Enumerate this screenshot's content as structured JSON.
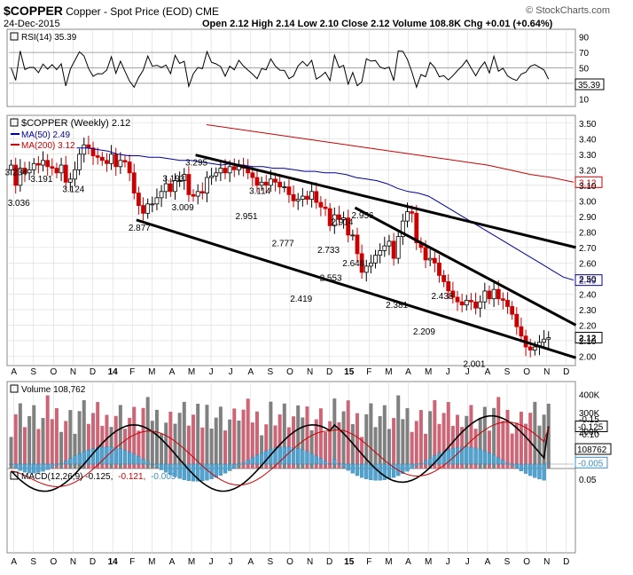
{
  "header": {
    "symbol": "$COPPER",
    "name": "Copper - Spot Price (EOD)",
    "exchange": "CME",
    "date": "24-Dec-2015",
    "ohlc_label": "Open 2.12  High 2.14  Low 2.10  Close 2.12  Volume 108.8K  Chg +0.01 (+0.64%)",
    "source": "© StockCharts.com"
  },
  "rsi": {
    "label": "RSI(14) 35.39",
    "value_box": "35.39",
    "ticks": [
      90,
      70,
      50,
      30,
      10
    ],
    "levels": [
      70,
      50,
      30
    ]
  },
  "price": {
    "label": "$COPPER (Weekly) 2.12",
    "ma50_label": "MA(50) 2.49",
    "ma200_label": "MA(200) 3.12",
    "ticks": [
      "3.50",
      "3.40",
      "3.30",
      "3.20",
      "3.10",
      "3.00",
      "2.90",
      "2.80",
      "2.70",
      "2.60",
      "2.50",
      "2.40",
      "2.30",
      "2.20",
      "2.10",
      "2.00"
    ],
    "tags": [
      "3.12",
      "2.49",
      "2.12"
    ],
    "annotations": [
      {
        "t": "3.234",
        "x": 0.4,
        "y": 3.234
      },
      {
        "t": "3.036",
        "x": 1,
        "y": 3.036
      },
      {
        "t": "3.191",
        "x": 6,
        "y": 3.191
      },
      {
        "t": "3.124",
        "x": 13,
        "y": 3.124
      },
      {
        "t": "2.877",
        "x": 27.5,
        "y": 2.877
      },
      {
        "t": "3.193",
        "x": 35,
        "y": 3.193
      },
      {
        "t": "3.009",
        "x": 37,
        "y": 3.009
      },
      {
        "t": "3.295",
        "x": 40,
        "y": 3.295
      },
      {
        "t": "3.114",
        "x": 54,
        "y": 3.114
      },
      {
        "t": "2.951",
        "x": 51,
        "y": 2.951
      },
      {
        "t": "2.777",
        "x": 59,
        "y": 2.777
      },
      {
        "t": "2.419",
        "x": 63,
        "y": 2.419
      },
      {
        "t": "2.733",
        "x": 69,
        "y": 2.733
      },
      {
        "t": "2.553",
        "x": 69.5,
        "y": 2.553
      },
      {
        "t": "2.914",
        "x": 72,
        "y": 2.914
      },
      {
        "t": "2.648",
        "x": 74.5,
        "y": 2.648
      },
      {
        "t": "2.956",
        "x": 76.5,
        "y": 2.956
      },
      {
        "t": "2.381",
        "x": 84,
        "y": 2.381
      },
      {
        "t": "2.438",
        "x": 94,
        "y": 2.438
      },
      {
        "t": "2.209",
        "x": 90,
        "y": 2.209
      },
      {
        "t": "2.001",
        "x": 101,
        "y": 2.001
      }
    ]
  },
  "volume": {
    "label": "Volume 108,762",
    "value_box": "108762",
    "ticks": [
      "400K",
      "300K",
      "200K",
      "100K"
    ]
  },
  "macd": {
    "label_prefix": "MACD(12,26,9) -0.125,",
    "label_signal": "-0.121,",
    "label_hist": "-0.005",
    "ticks": [
      "0.05",
      "-0.10",
      "-0.15"
    ],
    "tags": [
      "-0.005",
      "-0.125"
    ]
  },
  "x_axis": {
    "labels": [
      {
        "t": "A",
        "i": 0.6
      },
      {
        "t": "S",
        "i": 4.9
      },
      {
        "t": "O",
        "i": 9.3
      },
      {
        "t": "N",
        "i": 13.6
      },
      {
        "t": "D",
        "i": 17.9
      },
      {
        "t": "14",
        "i": 22.3,
        "bold": true
      },
      {
        "t": "F",
        "i": 26.6
      },
      {
        "t": "M",
        "i": 30.9
      },
      {
        "t": "A",
        "i": 35.3
      },
      {
        "t": "M",
        "i": 39.6
      },
      {
        "t": "J",
        "i": 43.9
      },
      {
        "t": "J",
        "i": 48.2
      },
      {
        "t": "A",
        "i": 52.6
      },
      {
        "t": "S",
        "i": 56.9
      },
      {
        "t": "O",
        "i": 61.2
      },
      {
        "t": "N",
        "i": 65.6
      },
      {
        "t": "D",
        "i": 69.9
      },
      {
        "t": "15",
        "i": 74.2,
        "bold": true
      },
      {
        "t": "F",
        "i": 78.6
      },
      {
        "t": "M",
        "i": 82.9
      },
      {
        "t": "A",
        "i": 87.2
      },
      {
        "t": "M",
        "i": 91.6
      },
      {
        "t": "J",
        "i": 95.9
      },
      {
        "t": "J",
        "i": 100.2
      },
      {
        "t": "A",
        "i": 104.6
      },
      {
        "t": "S",
        "i": 108.9
      },
      {
        "t": "O",
        "i": 113.2
      },
      {
        "t": "N",
        "i": 117.6
      },
      {
        "t": "D",
        "i": 121.9
      }
    ]
  },
  "colors": {
    "up": "#000000",
    "down": "#cc0000",
    "ma50": "#000099",
    "ma200": "#cc0000",
    "vol_up": "#808080",
    "vol_down": "#cc6677",
    "macd_hist": "#4fa3d1",
    "grid": "#d9d9d9"
  },
  "chart_data": {
    "type": "candlestick",
    "period": "weekly",
    "x_range": [
      "2013-08",
      "2015-12-24"
    ],
    "ylim": [
      1.94,
      3.55
    ],
    "close": [
      3.23,
      3.1,
      3.21,
      3.18,
      3.2,
      3.24,
      3.23,
      3.26,
      3.22,
      3.21,
      3.18,
      3.23,
      3.12,
      3.14,
      3.2,
      3.3,
      3.36,
      3.34,
      3.29,
      3.28,
      3.26,
      3.24,
      3.3,
      3.22,
      3.26,
      3.25,
      3.18,
      3.05,
      2.97,
      2.92,
      2.98,
      2.98,
      3.02,
      3.06,
      3.11,
      3.06,
      3.13,
      3.13,
      3.17,
      3.04,
      3.03,
      3.06,
      3.05,
      3.15,
      3.16,
      3.18,
      3.21,
      3.18,
      3.22,
      3.2,
      3.23,
      3.21,
      3.18,
      3.15,
      3.1,
      3.12,
      3.1,
      3.14,
      3.12,
      3.09,
      3.09,
      3.04,
      3.0,
      3.01,
      3.03,
      3.01,
      3.06,
      2.99,
      2.96,
      2.95,
      2.84,
      2.91,
      2.88,
      2.89,
      2.78,
      2.78,
      2.66,
      2.54,
      2.58,
      2.6,
      2.65,
      2.68,
      2.71,
      2.74,
      2.63,
      2.77,
      2.87,
      2.93,
      2.92,
      2.73,
      2.7,
      2.62,
      2.63,
      2.6,
      2.52,
      2.48,
      2.42,
      2.38,
      2.35,
      2.33,
      2.36,
      2.35,
      2.31,
      2.35,
      2.42,
      2.37,
      2.43,
      2.37,
      2.36,
      2.32,
      2.27,
      2.19,
      2.13,
      2.06,
      2.04,
      2.06,
      2.09,
      2.11,
      2.12
    ],
    "ma50": [
      3.34,
      3.34,
      3.33,
      3.32,
      3.3,
      3.29,
      3.29,
      3.28,
      3.28,
      3.27,
      3.26,
      3.26,
      3.25,
      3.24,
      3.23,
      3.24,
      3.23,
      3.22,
      3.22,
      3.21,
      3.21,
      3.2,
      3.19,
      3.19,
      3.18,
      3.18,
      3.17,
      3.15,
      3.14,
      3.13,
      3.11,
      3.08,
      3.06,
      3.05,
      3.03,
      2.99,
      2.95,
      2.91,
      2.87,
      2.83,
      2.79,
      2.75,
      2.71,
      2.67,
      2.63,
      2.59,
      2.55,
      2.51,
      2.49
    ],
    "ma200": [
      3.49,
      3.47,
      3.45,
      3.43,
      3.41,
      3.39,
      3.37,
      3.35,
      3.33,
      3.31,
      3.29,
      3.27,
      3.25,
      3.23,
      3.2,
      3.17,
      3.15,
      3.12
    ],
    "trendlines": [
      {
        "from": [
          40.5,
          3.295
        ],
        "to": [
          124,
          2.7
        ]
      },
      {
        "from": [
          27.5,
          2.877
        ],
        "to": [
          124,
          1.99
        ]
      },
      {
        "from": [
          75.5,
          2.956
        ],
        "to": [
          124,
          2.2
        ]
      }
    ],
    "volume_max": 430000,
    "rsi_last": 35.39,
    "macd_last": -0.125,
    "signal_last": -0.121,
    "hist_last": -0.005
  }
}
